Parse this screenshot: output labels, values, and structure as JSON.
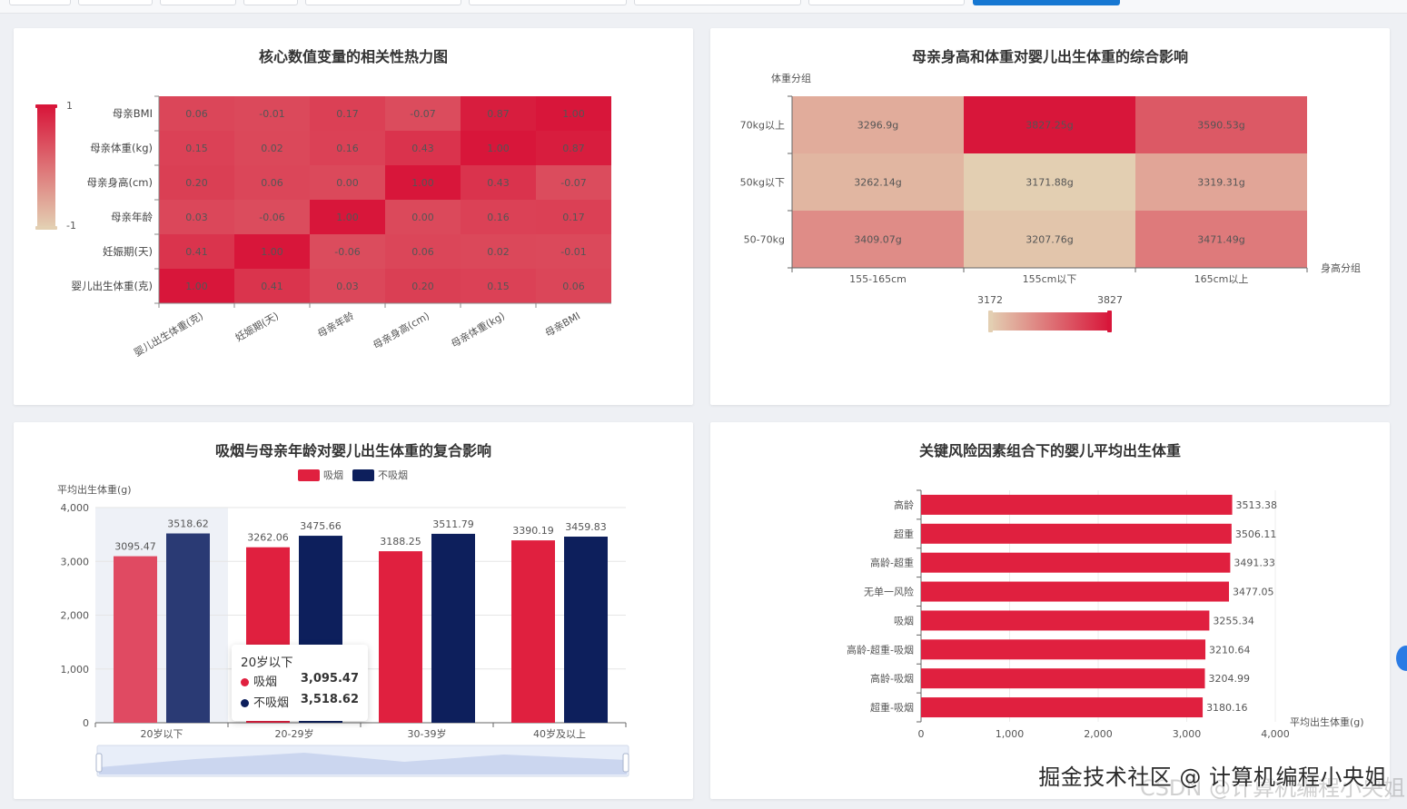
{
  "heatmap_corr": {
    "title": "核心数值变量的相关性热力图",
    "visual_map": {
      "max_label": "1",
      "min_label": "-1"
    },
    "rows": [
      "母亲BMI",
      "母亲体重(kg)",
      "母亲身高(cm)",
      "母亲年龄",
      "妊娠期(天)",
      "婴儿出生体重(克)"
    ],
    "cols": [
      "婴儿出生体重(克)",
      "妊娠期(天)",
      "母亲年龄",
      "母亲身高(cm)",
      "母亲体重(kg)",
      "母亲BMI"
    ],
    "cells": [
      [
        "0.06",
        "-0.01",
        "0.17",
        "-0.07",
        "0.87",
        "1.00"
      ],
      [
        "0.15",
        "0.02",
        "0.16",
        "0.43",
        "1.00",
        "0.87"
      ],
      [
        "0.20",
        "0.06",
        "0.00",
        "1.00",
        "0.43",
        "-0.07"
      ],
      [
        "0.03",
        "-0.06",
        "1.00",
        "0.00",
        "0.16",
        "0.17"
      ],
      [
        "0.41",
        "1.00",
        "-0.06",
        "0.06",
        "0.02",
        "-0.01"
      ],
      [
        "1.00",
        "0.41",
        "0.03",
        "0.20",
        "0.15",
        "0.06"
      ]
    ]
  },
  "heatmap_hw": {
    "title": "母亲身高和体重对婴儿出生体重的综合影响",
    "y_axis_name": "体重分组",
    "x_axis_name": "身高分组",
    "rows": [
      "70kg以上",
      "50kg以下",
      "50-70kg"
    ],
    "cols": [
      "155-165cm",
      "155cm以下",
      "165cm以上"
    ],
    "cells": [
      [
        "3296.9g",
        "3827.25g",
        "3590.53g"
      ],
      [
        "3262.14g",
        "3171.88g",
        "3319.31g"
      ],
      [
        "3409.07g",
        "3207.76g",
        "3471.49g"
      ]
    ],
    "values": [
      [
        3296.9,
        3827.25,
        3590.53
      ],
      [
        3262.14,
        3171.88,
        3319.31
      ],
      [
        3409.07,
        3207.76,
        3471.49
      ]
    ],
    "visual_map": {
      "min_label": "3172",
      "max_label": "3827",
      "min": 3172,
      "max": 3827
    }
  },
  "bar_smoke": {
    "title": "吸烟与母亲年龄对婴儿出生体重的复合影响",
    "legend": [
      "吸烟",
      "不吸烟"
    ],
    "y_axis_name": "平均出生体重(g)",
    "y_ticks": [
      "4,000",
      "3,000",
      "2,000",
      "1,000",
      "0"
    ],
    "ylim": [
      0,
      4000
    ],
    "categories": [
      "20岁以下",
      "20-29岁",
      "30-39岁",
      "40岁及以上"
    ],
    "series": [
      {
        "name": "吸烟",
        "values": [
          3095.47,
          3262.06,
          3188.25,
          3390.19
        ],
        "labels": [
          "3095.47",
          "3262.06",
          "3188.25",
          "3390.19"
        ],
        "color": "#e0203f"
      },
      {
        "name": "不吸烟",
        "values": [
          3518.62,
          3475.66,
          3511.79,
          3459.83
        ],
        "labels": [
          "3518.62",
          "3475.66",
          "3511.79",
          "3459.83"
        ],
        "color": "#0d1f5c"
      }
    ],
    "tooltip": {
      "title": "20岁以下",
      "rows": [
        {
          "name": "吸烟",
          "value": "3,095.47"
        },
        {
          "name": "不吸烟",
          "value": "3,518.62"
        }
      ]
    }
  },
  "bar_risk": {
    "title": "关键风险因素组合下的婴儿平均出生体重",
    "x_axis_name": "平均出生体重(g)",
    "x_ticks": [
      "0",
      "1,000",
      "2,000",
      "3,000",
      "4,000"
    ],
    "xlim": [
      0,
      4000
    ],
    "categories": [
      "高龄",
      "超重",
      "高龄-超重",
      "无单一风险",
      "吸烟",
      "高龄-超重-吸烟",
      "高龄-吸烟",
      "超重-吸烟"
    ],
    "values": [
      3513.38,
      3506.11,
      3491.33,
      3477.05,
      3255.34,
      3210.64,
      3204.99,
      3180.16
    ],
    "labels": [
      "3513.38",
      "3506.11",
      "3491.33",
      "3477.05",
      "3255.34",
      "3210.64",
      "3204.99",
      "3180.16"
    ],
    "color": "#e0203f"
  },
  "colors": {
    "heat_low": "#e3cfb2",
    "heat_high": "#d8163a",
    "smoke": "#e0203f",
    "nosmoke": "#0d1f5c",
    "accent": "#1677d2"
  },
  "watermark": "掘金技术社区 @ 计算机编程小央姐",
  "watermark2": "CSDN @计算机编程小央姐"
}
